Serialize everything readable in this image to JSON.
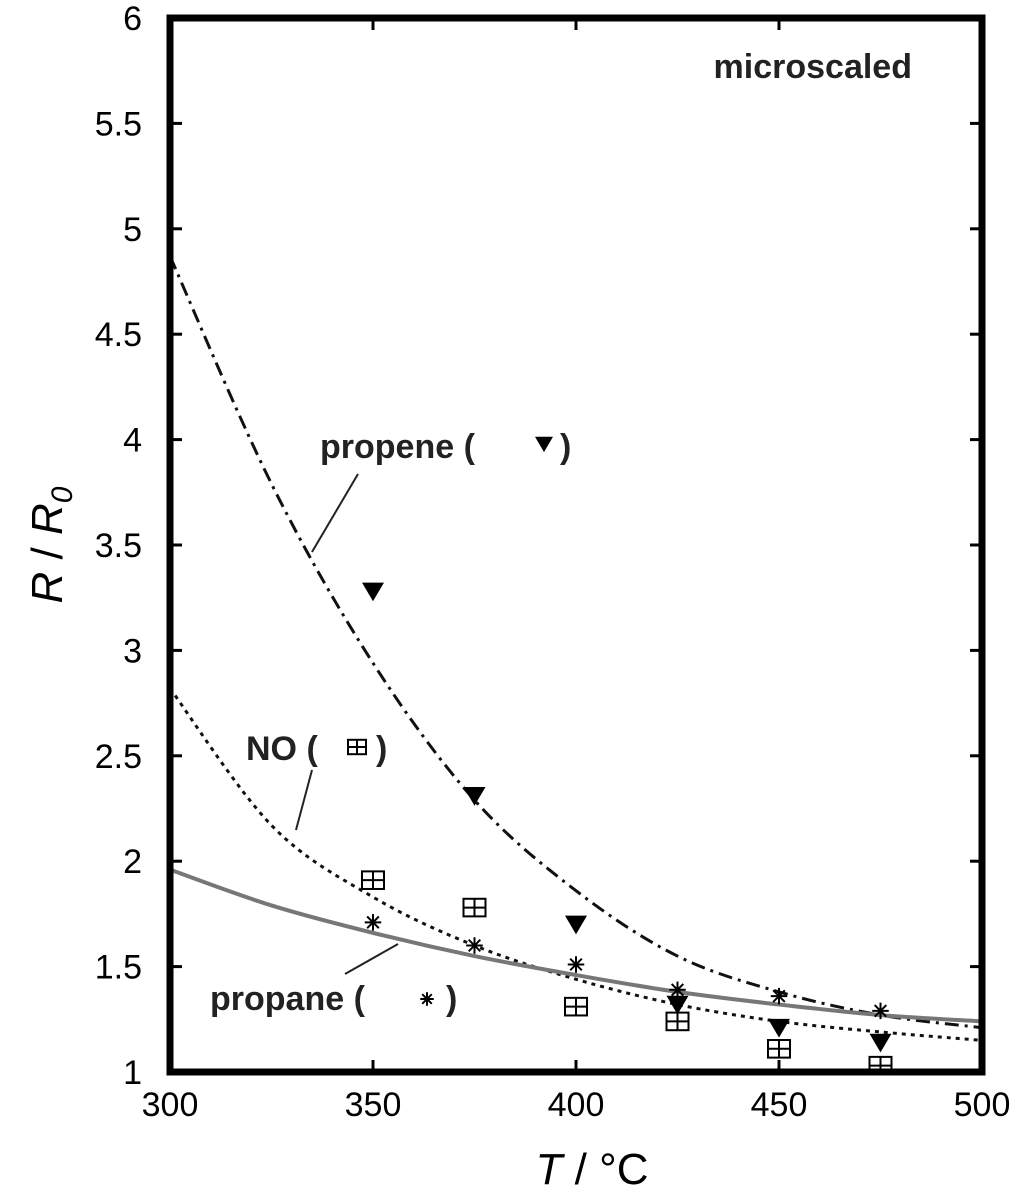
{
  "chart_data": {
    "type": "scatter",
    "title": "",
    "annotation_title": "microscaled",
    "xlabel": "T",
    "xunit": "°C",
    "ylabel_main": "R",
    "ylabel_sub": "0",
    "xlim": [
      300,
      500
    ],
    "ylim": [
      1,
      6
    ],
    "xticks": [
      300,
      350,
      400,
      450,
      500
    ],
    "xtick_labels": [
      "300",
      "350",
      "400",
      "450",
      "500"
    ],
    "yticks": [
      1,
      1.5,
      2,
      2.5,
      3,
      3.5,
      4,
      4.5,
      5,
      5.5,
      6
    ],
    "ytick_labels": [
      "1",
      "1.5",
      "2",
      "2.5",
      "3",
      "3.5",
      "4",
      "4.5",
      "5",
      "5.5",
      "6"
    ],
    "grid": false,
    "legend": "inline labels",
    "series": [
      {
        "name": "propene",
        "label_text": "propene (",
        "label_close": ")",
        "marker": "triangle-down",
        "color": "#111111",
        "line_style": "dash-dot",
        "points": [
          [
            350,
            3.28
          ],
          [
            375,
            2.31
          ],
          [
            400,
            1.7
          ],
          [
            425,
            1.32
          ],
          [
            450,
            1.21
          ],
          [
            475,
            1.14
          ]
        ],
        "fit": {
          "x": [
            300,
            325,
            350,
            375,
            400,
            425,
            450,
            475,
            500
          ],
          "y": [
            4.87,
            3.79,
            2.94,
            2.29,
            1.86,
            1.55,
            1.38,
            1.27,
            1.21
          ]
        }
      },
      {
        "name": "NO",
        "label_text": "NO (",
        "label_close": ")",
        "marker": "boxed-plus",
        "color": "#111111",
        "line_style": "dotted",
        "points": [
          [
            350,
            1.91
          ],
          [
            375,
            1.78
          ],
          [
            400,
            1.31
          ],
          [
            425,
            1.24
          ],
          [
            450,
            1.11
          ],
          [
            475,
            1.03
          ]
        ],
        "fit": {
          "x": [
            300,
            325,
            350,
            375,
            400,
            425,
            450,
            475,
            500
          ],
          "y": [
            2.82,
            2.17,
            1.83,
            1.6,
            1.44,
            1.32,
            1.24,
            1.19,
            1.15
          ]
        }
      },
      {
        "name": "propane",
        "label_text": "propane (",
        "label_close": ")",
        "marker": "asterisk",
        "color": "#111111",
        "line_style": "solid",
        "line_color": "#777777",
        "points": [
          [
            350,
            1.71
          ],
          [
            375,
            1.6
          ],
          [
            400,
            1.51
          ],
          [
            425,
            1.39
          ],
          [
            450,
            1.36
          ],
          [
            475,
            1.29
          ]
        ],
        "fit": {
          "x": [
            300,
            325,
            350,
            375,
            400,
            425,
            450,
            475,
            500
          ],
          "y": [
            1.96,
            1.79,
            1.66,
            1.55,
            1.46,
            1.38,
            1.32,
            1.27,
            1.24
          ]
        }
      }
    ]
  }
}
